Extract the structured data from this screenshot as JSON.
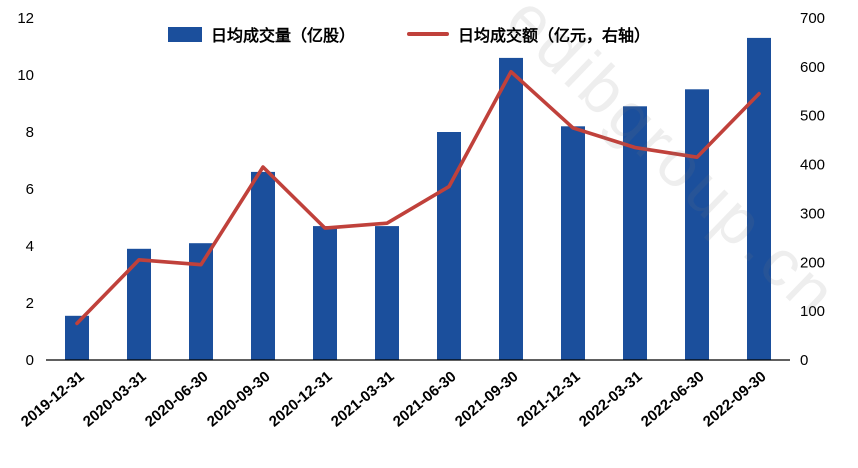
{
  "watermark": "edibgroup.cn",
  "chart_data": {
    "type": "bar",
    "subtype": "bar+line combo, dual axis",
    "title": "",
    "xlabel": "",
    "ylabel_left": "",
    "ylabel_right": "",
    "grid": false,
    "legend_position": "top-center",
    "categories": [
      "2019-12-31",
      "2020-03-31",
      "2020-06-30",
      "2020-09-30",
      "2020-12-31",
      "2021-03-31",
      "2021-06-30",
      "2021-09-30",
      "2021-12-31",
      "2022-03-31",
      "2022-06-30",
      "2022-09-30"
    ],
    "series": [
      {
        "name": "日均成交量（亿股）",
        "type": "bar",
        "axis": "left",
        "values": [
          1.55,
          3.9,
          4.1,
          6.6,
          4.7,
          4.7,
          8.0,
          10.6,
          8.2,
          8.9,
          9.5,
          11.3
        ]
      },
      {
        "name": "日均成交额（亿元，右轴）",
        "type": "line",
        "axis": "right",
        "values": [
          75,
          205,
          195,
          395,
          270,
          280,
          355,
          590,
          475,
          435,
          415,
          545
        ]
      }
    ],
    "left_axis": {
      "min": 0,
      "max": 12,
      "step": 2,
      "ticks": [
        "0",
        "2",
        "4",
        "6",
        "8",
        "10",
        "12"
      ]
    },
    "right_axis": {
      "min": 0,
      "max": 700,
      "step": 100,
      "ticks": [
        "0",
        "100",
        "200",
        "300",
        "400",
        "500",
        "600",
        "700"
      ]
    },
    "colors": {
      "bar": "#1B4F9C",
      "line": "#C0413B",
      "axis": "#000000",
      "text": "#000000"
    }
  }
}
